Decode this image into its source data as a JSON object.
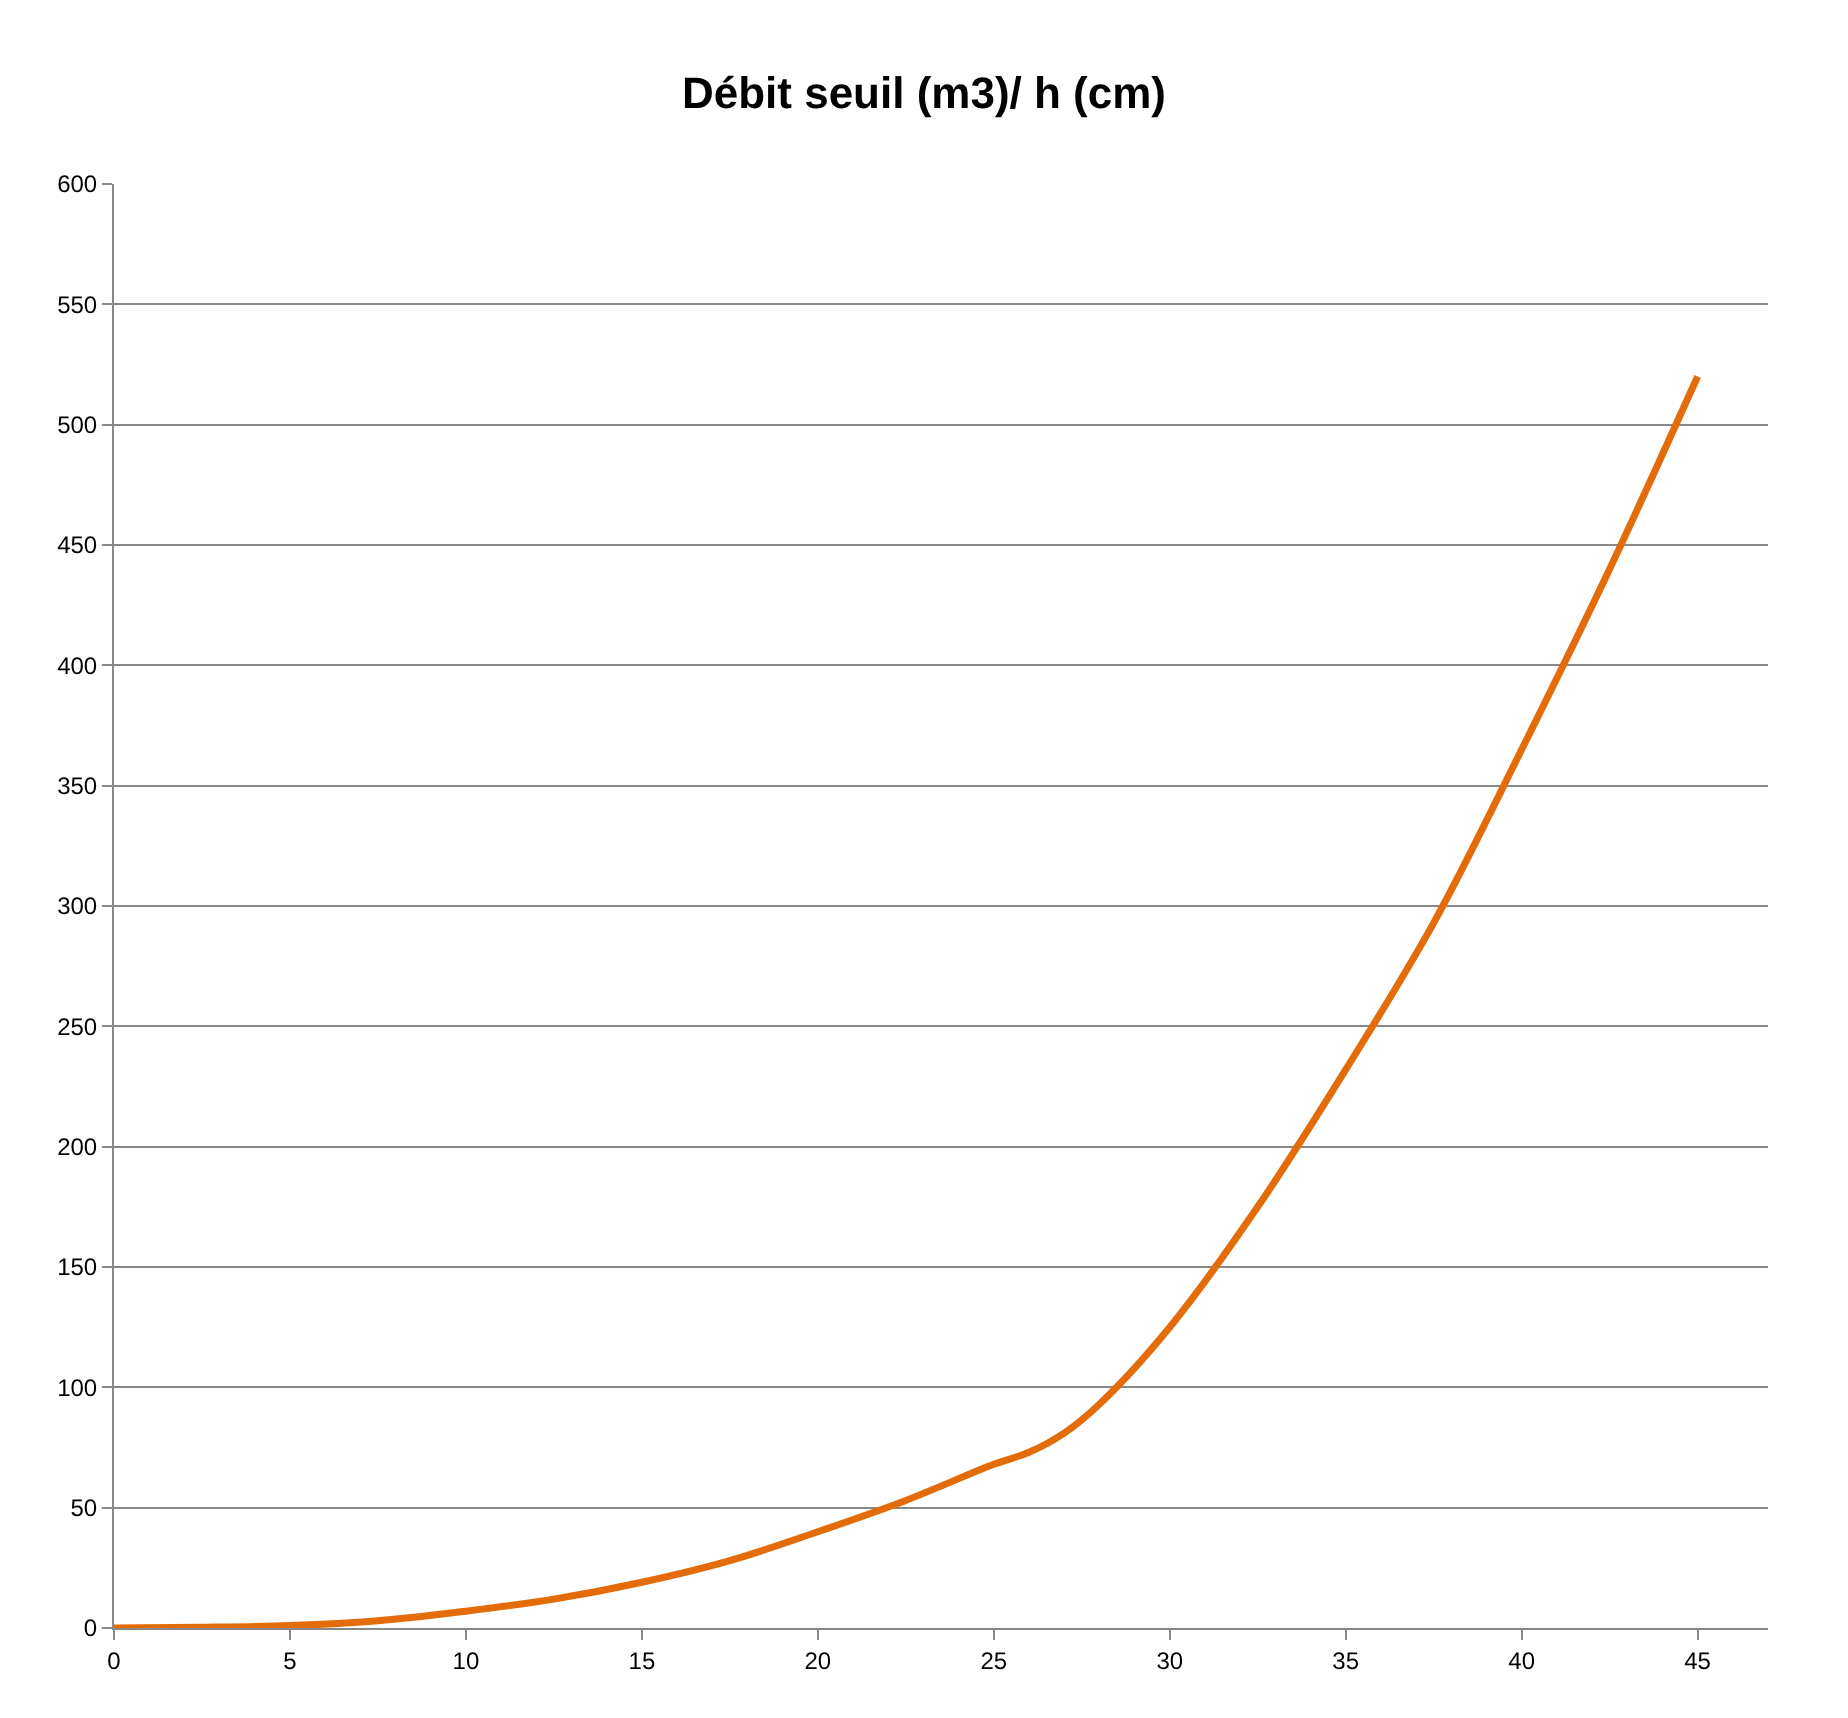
{
  "chart_data": {
    "type": "line",
    "title": "Débit seuil (m3)/ h (cm)",
    "x": [
      0,
      2.5,
      5,
      7.5,
      10,
      12.5,
      15,
      17.5,
      20,
      22.5,
      25,
      26,
      27,
      28,
      30,
      32.5,
      35,
      37.5,
      40,
      42.5,
      45
    ],
    "series": [
      {
        "color": "#e36c09",
        "values": [
          0,
          0.3,
          1,
          3,
          7,
          12,
          19,
          28,
          40,
          53,
          68,
          73,
          81,
          93,
          125,
          175,
          232,
          293,
          365,
          440,
          520
        ]
      }
    ],
    "xlim": [
      0,
      47
    ],
    "xticks": [
      0,
      5,
      10,
      15,
      20,
      25,
      30,
      35,
      40,
      45
    ],
    "ylim": [
      0,
      600
    ],
    "yticks": [
      0,
      50,
      100,
      150,
      200,
      250,
      300,
      350,
      400,
      450,
      500,
      550,
      600
    ],
    "grid": "y",
    "legend": false,
    "marker": "none",
    "line_style": "solid"
  }
}
